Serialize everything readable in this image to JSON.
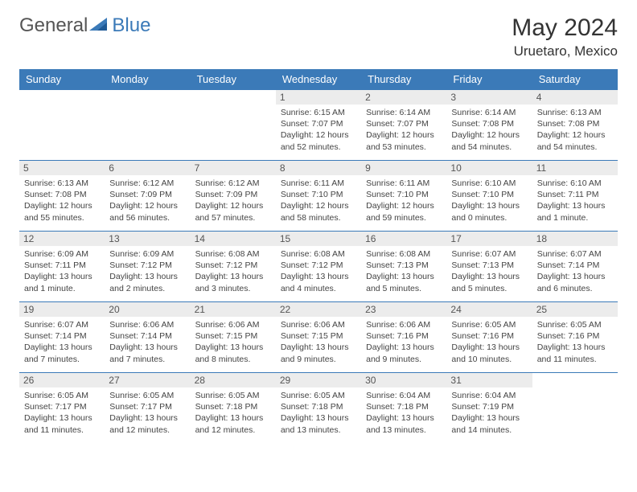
{
  "brand": {
    "text_general": "General",
    "text_blue": "Blue"
  },
  "header": {
    "month": "May 2024",
    "location": "Uruetaro, Mexico"
  },
  "colors": {
    "header_bg": "#3b7ab8",
    "header_fg": "#ffffff",
    "daynum_bg": "#ececec",
    "text": "#444444",
    "border": "#3b7ab8"
  },
  "daynames": [
    "Sunday",
    "Monday",
    "Tuesday",
    "Wednesday",
    "Thursday",
    "Friday",
    "Saturday"
  ],
  "weeks": [
    [
      {},
      {},
      {},
      {
        "n": "1",
        "sr": "6:15 AM",
        "ss": "7:07 PM",
        "dl": "12 hours and 52 minutes."
      },
      {
        "n": "2",
        "sr": "6:14 AM",
        "ss": "7:07 PM",
        "dl": "12 hours and 53 minutes."
      },
      {
        "n": "3",
        "sr": "6:14 AM",
        "ss": "7:08 PM",
        "dl": "12 hours and 54 minutes."
      },
      {
        "n": "4",
        "sr": "6:13 AM",
        "ss": "7:08 PM",
        "dl": "12 hours and 54 minutes."
      }
    ],
    [
      {
        "n": "5",
        "sr": "6:13 AM",
        "ss": "7:08 PM",
        "dl": "12 hours and 55 minutes."
      },
      {
        "n": "6",
        "sr": "6:12 AM",
        "ss": "7:09 PM",
        "dl": "12 hours and 56 minutes."
      },
      {
        "n": "7",
        "sr": "6:12 AM",
        "ss": "7:09 PM",
        "dl": "12 hours and 57 minutes."
      },
      {
        "n": "8",
        "sr": "6:11 AM",
        "ss": "7:10 PM",
        "dl": "12 hours and 58 minutes."
      },
      {
        "n": "9",
        "sr": "6:11 AM",
        "ss": "7:10 PM",
        "dl": "12 hours and 59 minutes."
      },
      {
        "n": "10",
        "sr": "6:10 AM",
        "ss": "7:10 PM",
        "dl": "13 hours and 0 minutes."
      },
      {
        "n": "11",
        "sr": "6:10 AM",
        "ss": "7:11 PM",
        "dl": "13 hours and 1 minute."
      }
    ],
    [
      {
        "n": "12",
        "sr": "6:09 AM",
        "ss": "7:11 PM",
        "dl": "13 hours and 1 minute."
      },
      {
        "n": "13",
        "sr": "6:09 AM",
        "ss": "7:12 PM",
        "dl": "13 hours and 2 minutes."
      },
      {
        "n": "14",
        "sr": "6:08 AM",
        "ss": "7:12 PM",
        "dl": "13 hours and 3 minutes."
      },
      {
        "n": "15",
        "sr": "6:08 AM",
        "ss": "7:12 PM",
        "dl": "13 hours and 4 minutes."
      },
      {
        "n": "16",
        "sr": "6:08 AM",
        "ss": "7:13 PM",
        "dl": "13 hours and 5 minutes."
      },
      {
        "n": "17",
        "sr": "6:07 AM",
        "ss": "7:13 PM",
        "dl": "13 hours and 5 minutes."
      },
      {
        "n": "18",
        "sr": "6:07 AM",
        "ss": "7:14 PM",
        "dl": "13 hours and 6 minutes."
      }
    ],
    [
      {
        "n": "19",
        "sr": "6:07 AM",
        "ss": "7:14 PM",
        "dl": "13 hours and 7 minutes."
      },
      {
        "n": "20",
        "sr": "6:06 AM",
        "ss": "7:14 PM",
        "dl": "13 hours and 7 minutes."
      },
      {
        "n": "21",
        "sr": "6:06 AM",
        "ss": "7:15 PM",
        "dl": "13 hours and 8 minutes."
      },
      {
        "n": "22",
        "sr": "6:06 AM",
        "ss": "7:15 PM",
        "dl": "13 hours and 9 minutes."
      },
      {
        "n": "23",
        "sr": "6:06 AM",
        "ss": "7:16 PM",
        "dl": "13 hours and 9 minutes."
      },
      {
        "n": "24",
        "sr": "6:05 AM",
        "ss": "7:16 PM",
        "dl": "13 hours and 10 minutes."
      },
      {
        "n": "25",
        "sr": "6:05 AM",
        "ss": "7:16 PM",
        "dl": "13 hours and 11 minutes."
      }
    ],
    [
      {
        "n": "26",
        "sr": "6:05 AM",
        "ss": "7:17 PM",
        "dl": "13 hours and 11 minutes."
      },
      {
        "n": "27",
        "sr": "6:05 AM",
        "ss": "7:17 PM",
        "dl": "13 hours and 12 minutes."
      },
      {
        "n": "28",
        "sr": "6:05 AM",
        "ss": "7:18 PM",
        "dl": "13 hours and 12 minutes."
      },
      {
        "n": "29",
        "sr": "6:05 AM",
        "ss": "7:18 PM",
        "dl": "13 hours and 13 minutes."
      },
      {
        "n": "30",
        "sr": "6:04 AM",
        "ss": "7:18 PM",
        "dl": "13 hours and 13 minutes."
      },
      {
        "n": "31",
        "sr": "6:04 AM",
        "ss": "7:19 PM",
        "dl": "13 hours and 14 minutes."
      },
      {}
    ]
  ],
  "labels": {
    "sunrise": "Sunrise:",
    "sunset": "Sunset:",
    "daylight": "Daylight:"
  }
}
